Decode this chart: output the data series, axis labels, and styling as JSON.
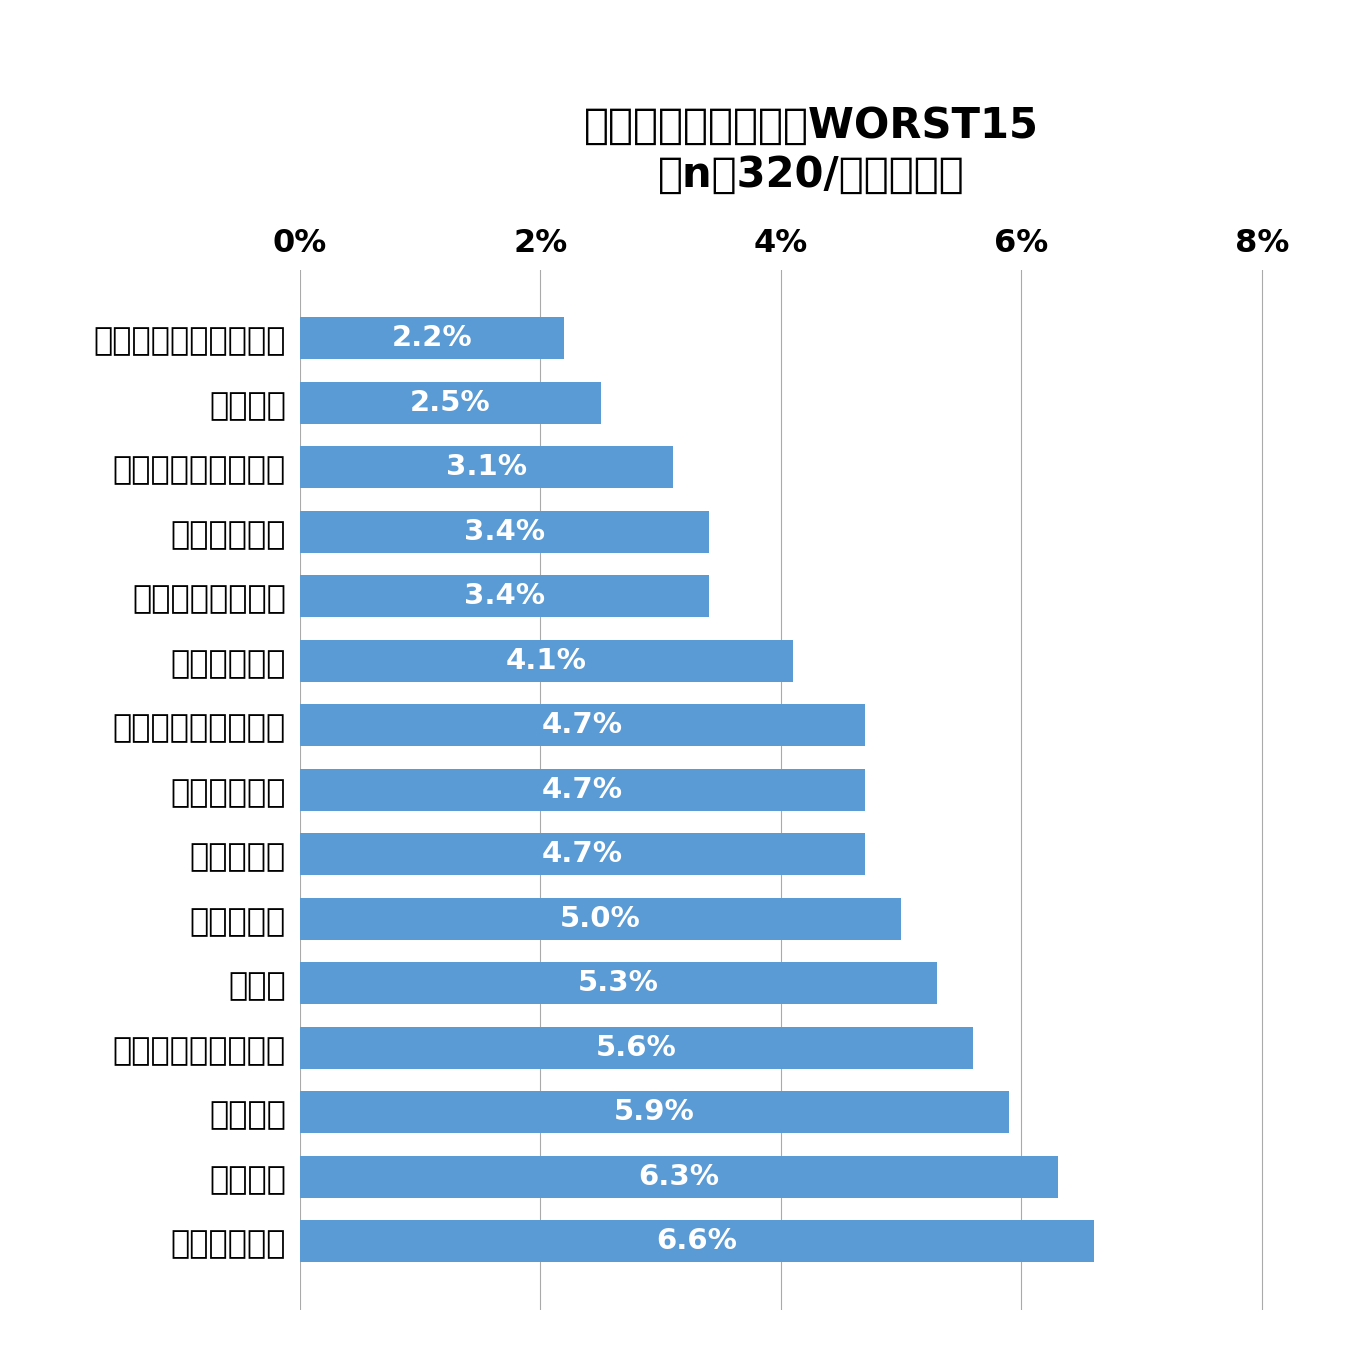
{
  "title_line1": "選び方を変えたものWORST15",
  "title_line2": "（n＝320/複数回答）",
  "categories": [
    "キャリア志向",
    "医療保険",
    "スポーツ",
    "資産運用系サービス",
    "住まい",
    "自動車保険",
    "家事の分担",
    "宅配サービス",
    "ヘルスケアサービス",
    "医療サービス",
    "出会い系サービス",
    "教育サービス",
    "レンタル系サービス",
    "駐車場代",
    "シェアリングサービス"
  ],
  "values": [
    6.6,
    6.3,
    5.9,
    5.6,
    5.3,
    5.0,
    4.7,
    4.7,
    4.7,
    4.1,
    3.4,
    3.4,
    3.1,
    2.5,
    2.2
  ],
  "labels": [
    "6.6%",
    "6.3%",
    "5.9%",
    "5.6%",
    "5.3%",
    "5.0%",
    "4.7%",
    "4.7%",
    "4.7%",
    "4.1%",
    "3.4%",
    "3.4%",
    "3.1%",
    "2.5%",
    "2.2%"
  ],
  "bar_color": "#5b9bd5",
  "label_color": "#ffffff",
  "background_color": "#ffffff",
  "xlim": [
    0,
    8.5
  ],
  "xticks": [
    0,
    2,
    4,
    6,
    8
  ],
  "xtick_labels": [
    "0%",
    "2%",
    "4%",
    "6%",
    "8%"
  ],
  "grid_color": "#aaaaaa",
  "title_fontsize": 30,
  "subtitle_fontsize": 30,
  "tick_fontsize": 23,
  "label_fontsize": 21,
  "category_fontsize": 23
}
